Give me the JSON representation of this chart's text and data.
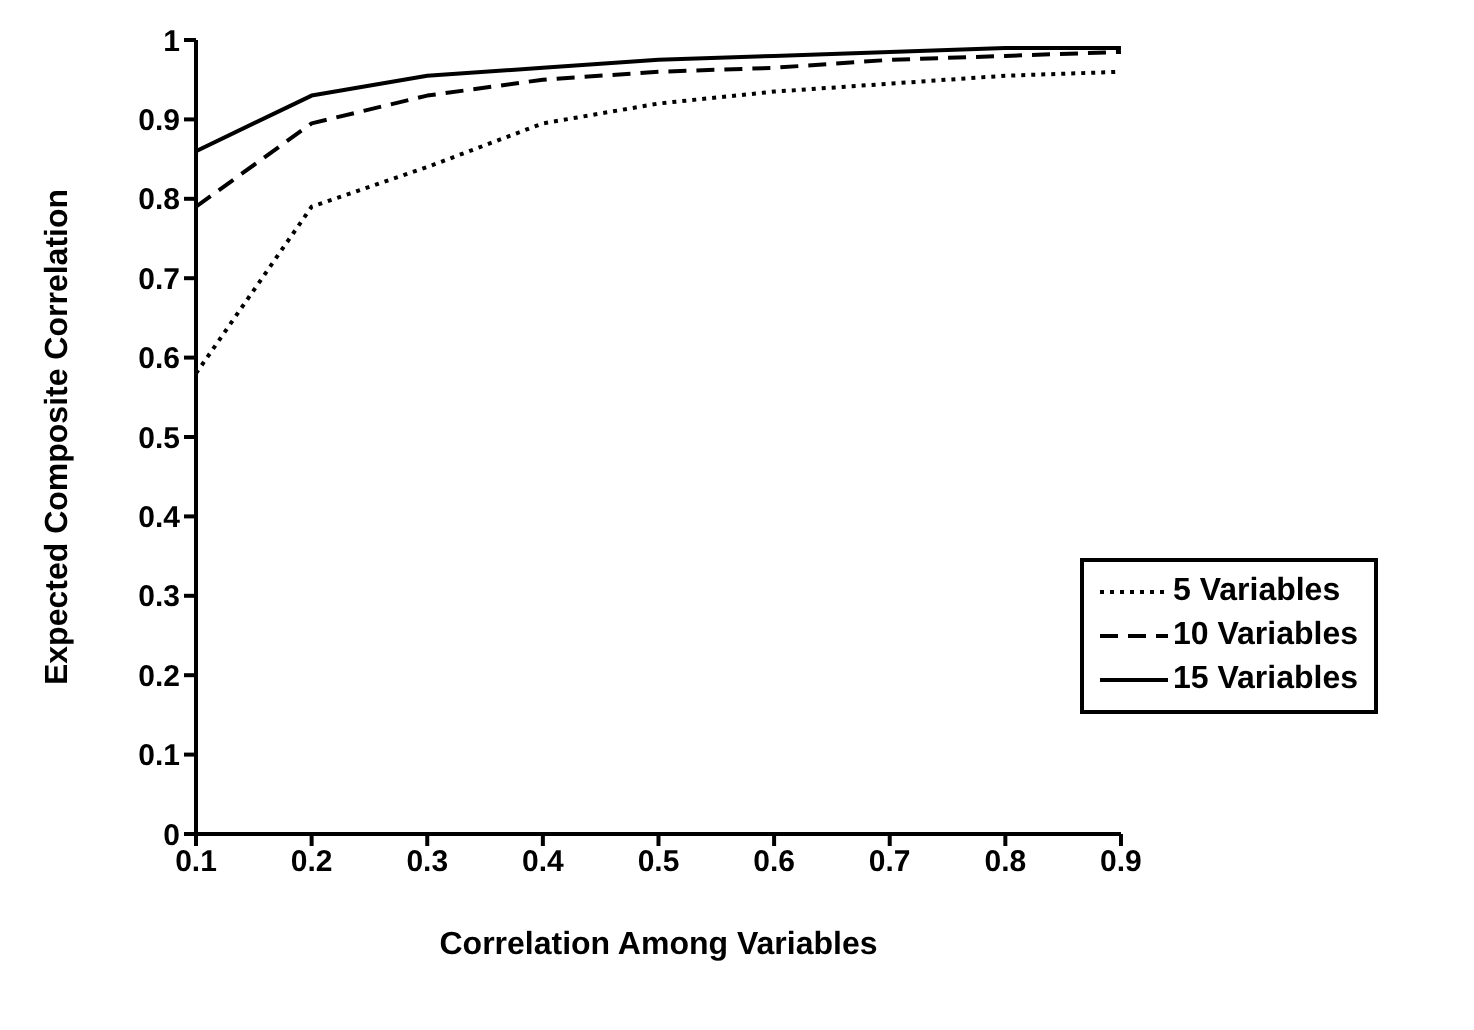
{
  "chart_data": {
    "type": "line",
    "xlabel": "Correlation Among Variables",
    "ylabel": "Expected Composite Correlation",
    "x": [
      0.1,
      0.2,
      0.3,
      0.4,
      0.5,
      0.6,
      0.7,
      0.8,
      0.9
    ],
    "series": [
      {
        "name": "5 Variables",
        "color": "#000000",
        "line_style": "dotted",
        "values": [
          0.58,
          0.79,
          0.84,
          0.895,
          0.92,
          0.935,
          0.945,
          0.955,
          0.96
        ]
      },
      {
        "name": "10 Variables",
        "color": "#000000",
        "line_style": "dashed",
        "values": [
          0.79,
          0.895,
          0.93,
          0.95,
          0.96,
          0.965,
          0.975,
          0.98,
          0.985
        ]
      },
      {
        "name": "15 Variables",
        "color": "#000000",
        "line_style": "solid",
        "values": [
          0.86,
          0.93,
          0.955,
          0.965,
          0.975,
          0.98,
          0.985,
          0.99,
          0.99
        ]
      }
    ],
    "xlim": [
      0.1,
      0.9
    ],
    "xticks": [
      0.1,
      0.2,
      0.3,
      0.4,
      0.5,
      0.6,
      0.7,
      0.8,
      0.9
    ],
    "ylim": [
      0,
      1
    ],
    "yticks": [
      0,
      0.1,
      0.2,
      0.3,
      0.4,
      0.5,
      0.6,
      0.7,
      0.8,
      0.9,
      1
    ],
    "grid": false,
    "legend": "bottom right",
    "marker": "none"
  }
}
